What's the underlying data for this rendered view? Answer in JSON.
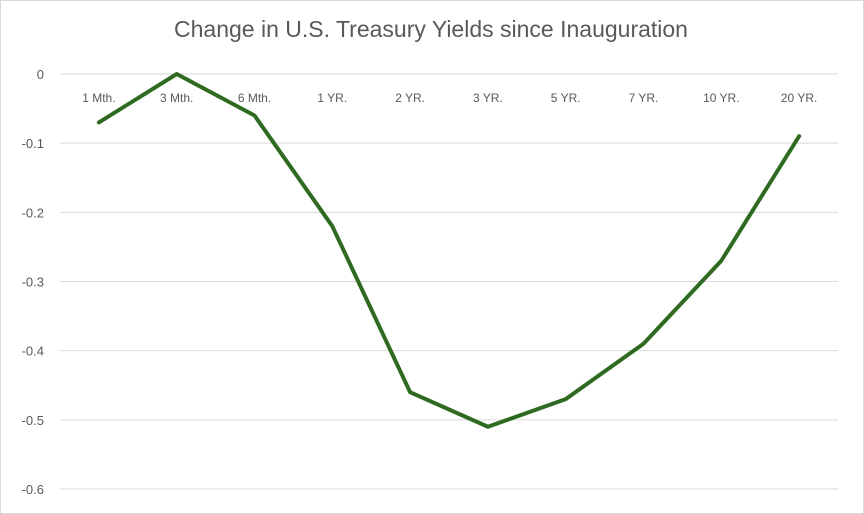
{
  "chart_data": {
    "type": "line",
    "title": "Change in U.S. Treasury Yields since Inauguration",
    "xlabel": "",
    "ylabel": "",
    "categories": [
      "1 Mth.",
      "3 Mth.",
      "6 Mth.",
      "1 YR.",
      "2 YR.",
      "3 YR.",
      "5 YR.",
      "7 YR.",
      "10 YR.",
      "20 YR."
    ],
    "series": [
      {
        "values": [
          -0.07,
          0.0,
          -0.06,
          -0.22,
          -0.46,
          -0.51,
          -0.47,
          -0.39,
          -0.27,
          -0.09
        ],
        "color": "#2e6b21"
      }
    ],
    "ylim": [
      -0.6,
      0
    ],
    "yticks": [
      0,
      -0.1,
      -0.2,
      -0.3,
      -0.4,
      -0.5,
      -0.6
    ],
    "ytick_labels": [
      "0",
      "-0.1",
      "-0.2",
      "-0.3",
      "-0.4",
      "-0.5",
      "-0.6"
    ],
    "grid": true,
    "legend": "none",
    "gridline_color": "#d9d9d9"
  }
}
